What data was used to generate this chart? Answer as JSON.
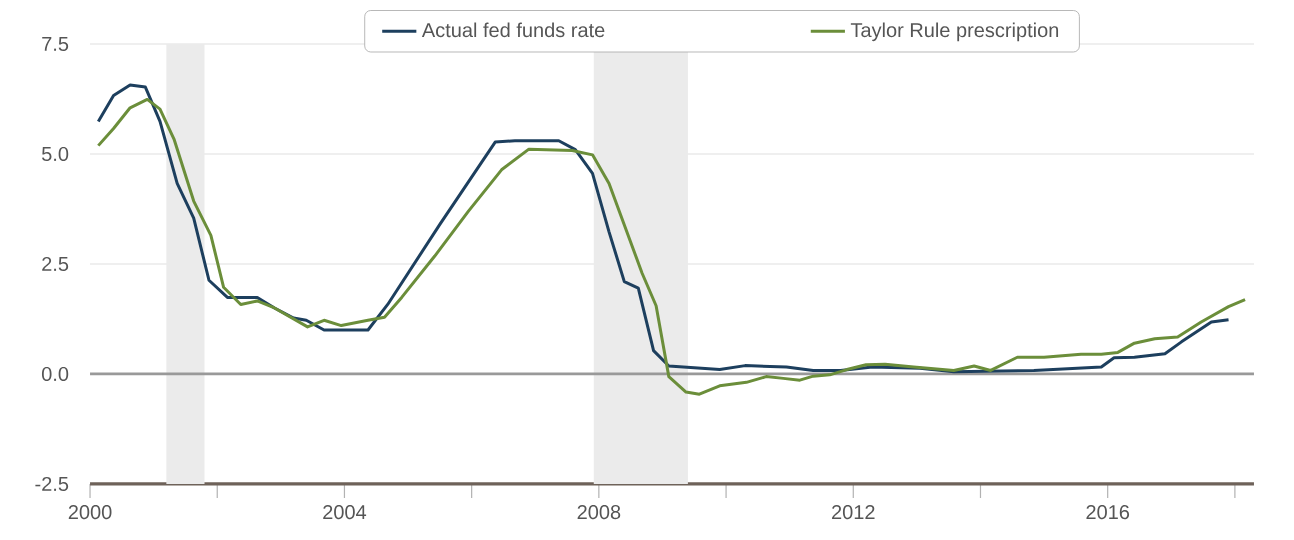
{
  "chart_data": {
    "type": "line",
    "xlim": [
      2000,
      2018.3
    ],
    "ylim": [
      -2.5,
      7.5
    ],
    "xticks": [
      2000,
      {
        "value": 2002,
        "label": null
      },
      2004,
      {
        "value": 2006,
        "label": null
      },
      2008,
      {
        "value": 2010,
        "label": null
      },
      2012,
      {
        "value": 2014,
        "label": null
      },
      2016,
      {
        "value": 2018,
        "label": null
      }
    ],
    "yticks": [
      -2.5,
      {
        "value": 0,
        "label": "0.0"
      },
      2.5,
      {
        "value": 5,
        "label": "5.0"
      },
      7.5
    ],
    "grid": "y",
    "legend": "top",
    "marker": "none",
    "line_style": "solid",
    "bands": [
      {
        "axis": "x",
        "from": 2001.2,
        "to": 2001.8,
        "color": "#ebebeb"
      },
      {
        "axis": "x",
        "from": 2007.92,
        "to": 2009.4,
        "color": "#ebebeb"
      }
    ],
    "ref_lines": [
      {
        "axis": "y",
        "value": 0,
        "color": "#999999"
      }
    ],
    "series": [
      {
        "name": "Actual fed funds rate",
        "color": "#1d3f5e",
        "x": [
          2000.13,
          2000.37,
          2000.63,
          2000.87,
          2001.1,
          2001.37,
          2001.63,
          2001.87,
          2002.16,
          2002.63,
          2002.9,
          2003.2,
          2003.4,
          2003.68,
          2004.37,
          2004.68,
          2005.5,
          2006.37,
          2006.68,
          2007.37,
          2007.63,
          2007.9,
          2008.16,
          2008.4,
          2008.62,
          2008.86,
          2009.1,
          2009.9,
          2010.3,
          2010.95,
          2011.37,
          2011.8,
          2012.3,
          2013.05,
          2013.58,
          2014.84,
          2015.9,
          2016.1,
          2016.42,
          2016.9,
          2017.16,
          2017.63,
          2017.9
        ],
        "values": [
          5.74,
          6.33,
          6.57,
          6.52,
          5.74,
          4.33,
          3.54,
          2.13,
          1.74,
          1.74,
          1.5,
          1.27,
          1.22,
          1.0,
          1.0,
          1.58,
          3.4,
          5.27,
          5.3,
          5.3,
          5.1,
          4.56,
          3.23,
          2.1,
          1.95,
          0.53,
          0.18,
          0.1,
          0.19,
          0.16,
          0.08,
          0.08,
          0.16,
          0.13,
          0.05,
          0.08,
          0.16,
          0.37,
          0.38,
          0.46,
          0.73,
          1.18,
          1.23
        ]
      },
      {
        "name": "Taylor Rule prescription",
        "color": "#6b8e3a",
        "x": [
          2000.13,
          2000.37,
          2000.63,
          2000.9,
          2001.1,
          2001.32,
          2001.63,
          2001.9,
          2002.1,
          2002.37,
          2002.63,
          2002.9,
          2003.42,
          2003.68,
          2003.95,
          2004.37,
          2004.63,
          2004.9,
          2005.42,
          2005.95,
          2006.47,
          2006.9,
          2007.58,
          2007.9,
          2008.16,
          2008.42,
          2008.68,
          2008.9,
          2009.1,
          2009.37,
          2009.58,
          2009.9,
          2010.32,
          2010.63,
          2010.9,
          2011.16,
          2011.37,
          2011.63,
          2011.9,
          2012.2,
          2012.5,
          2012.95,
          2013.58,
          2013.9,
          2014.16,
          2014.58,
          2015.0,
          2015.58,
          2015.9,
          2016.16,
          2016.42,
          2016.74,
          2017.1,
          2017.47,
          2017.9,
          2018.16
        ],
        "values": [
          5.19,
          5.58,
          6.05,
          6.24,
          6.02,
          5.34,
          3.93,
          3.15,
          1.97,
          1.58,
          1.66,
          1.5,
          1.07,
          1.22,
          1.1,
          1.22,
          1.29,
          1.74,
          2.68,
          3.7,
          4.64,
          5.11,
          5.08,
          4.98,
          4.33,
          3.31,
          2.29,
          1.55,
          -0.06,
          -0.41,
          -0.46,
          -0.27,
          -0.19,
          -0.06,
          -0.1,
          -0.14,
          -0.05,
          -0.02,
          0.1,
          0.21,
          0.22,
          0.16,
          0.08,
          0.18,
          0.08,
          0.38,
          0.38,
          0.45,
          0.45,
          0.49,
          0.7,
          0.8,
          0.84,
          1.18,
          1.53,
          1.69
        ]
      }
    ]
  }
}
